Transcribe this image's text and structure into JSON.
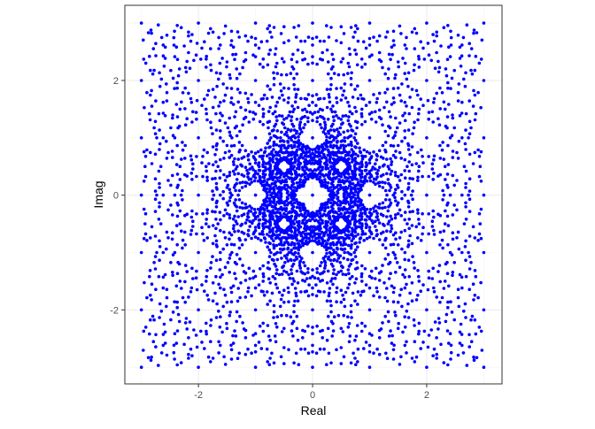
{
  "chart_data": {
    "type": "scatter",
    "title": "",
    "xlabel": "Real",
    "ylabel": "Imag",
    "xlim": [
      -3.29,
      3.32
    ],
    "ylim": [
      -3.29,
      3.31
    ],
    "x_ticks": [
      -2,
      0,
      2
    ],
    "y_ticks": [
      -2,
      0,
      2
    ],
    "x_tick_labels": [
      "-2",
      "0",
      "2"
    ],
    "y_tick_labels": [
      "-2",
      "0",
      "2"
    ],
    "grid": true,
    "legend": "none",
    "point_color": "#0000FF",
    "points_region": {
      "real": [
        -3,
        3
      ],
      "imag": [
        -3,
        3
      ]
    }
  }
}
